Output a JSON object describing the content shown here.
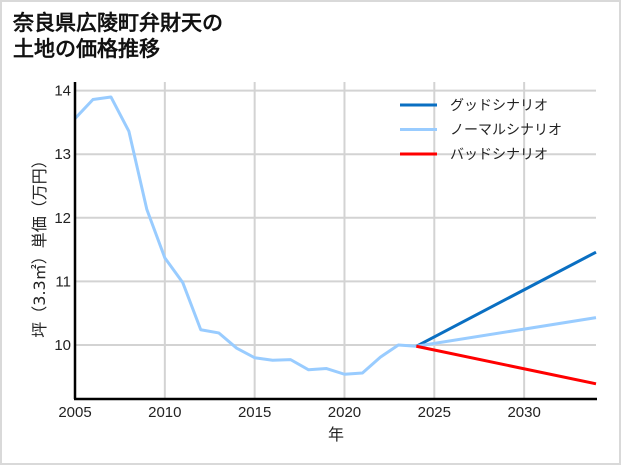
{
  "title": {
    "line1": "奈良県広陵町弁財天の",
    "line2": "土地の価格推移"
  },
  "colors": {
    "good": "#0a6fc2",
    "normal": "#99ccff",
    "bad": "#ff0000",
    "grid": "#d3d3d3",
    "axis": "#000000"
  },
  "chart_data": {
    "type": "line",
    "title": "奈良県広陵町弁財天の土地の価格推移",
    "xlabel": "年",
    "ylabel": "坪（3.3㎡）単価（万円）",
    "xlim": [
      2005,
      2034
    ],
    "ylim": [
      9.28,
      14.07
    ],
    "xticks": [
      2005,
      2010,
      2015,
      2020,
      2025,
      2030
    ],
    "yticks": [
      10,
      11,
      12,
      13,
      14
    ],
    "grid": true,
    "legend_position": "upper right",
    "series": [
      {
        "name": "ノーマルシナリオ",
        "role": "historical",
        "color": "#99ccff",
        "x": [
          2005,
          2006,
          2007,
          2008,
          2009,
          2010,
          2011,
          2012,
          2013,
          2014,
          2015,
          2016,
          2017,
          2018,
          2019,
          2020,
          2021,
          2022,
          2023,
          2024
        ],
        "values": [
          13.56,
          13.86,
          13.9,
          13.36,
          12.13,
          11.37,
          10.98,
          10.24,
          10.19,
          9.95,
          9.8,
          9.76,
          9.77,
          9.61,
          9.63,
          9.54,
          9.56,
          9.81,
          10.0,
          9.98
        ]
      },
      {
        "name": "グッドシナリオ",
        "color": "#0a6fc2",
        "x": [
          2024,
          2034
        ],
        "values": [
          9.98,
          11.46
        ]
      },
      {
        "name": "ノーマルシナリオ",
        "color": "#99ccff",
        "x": [
          2024,
          2034
        ],
        "values": [
          9.98,
          10.43
        ]
      },
      {
        "name": "バッドシナリオ",
        "color": "#ff0000",
        "x": [
          2024,
          2034
        ],
        "values": [
          9.98,
          9.39
        ]
      }
    ],
    "legend": [
      {
        "label": "グッドシナリオ",
        "color": "#0a6fc2"
      },
      {
        "label": "ノーマルシナリオ",
        "color": "#99ccff"
      },
      {
        "label": "バッドシナリオ",
        "color": "#ff0000"
      }
    ]
  }
}
